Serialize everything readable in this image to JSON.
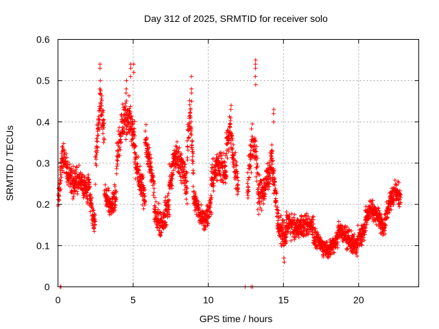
{
  "chart_data": {
    "type": "scatter",
    "title": "Day 312 of 2025, SRMTID for receiver solo",
    "xlabel": "GPS time / hours",
    "ylabel": "SRMTID / TECUs",
    "xlim": [
      0,
      24
    ],
    "ylim": [
      0,
      0.6
    ],
    "x_ticks": [
      0,
      5,
      10,
      15,
      20
    ],
    "x_tick_labels": [
      "0",
      "5",
      "10",
      "15",
      "20"
    ],
    "y_ticks": [
      0,
      0.1,
      0.2,
      0.3,
      0.4,
      0.5,
      0.6
    ],
    "y_tick_labels": [
      "0",
      "0.1",
      "0.2",
      "0.3",
      "0.4",
      "0.5",
      "0.6"
    ],
    "grid": true,
    "marker": "plus",
    "color": "#ff0000",
    "sample_interval_hours": 0.02,
    "segments": [
      {
        "start": 0.0,
        "end": 0.6,
        "base": [
          0.2,
          0.32,
          0.28
        ],
        "spread": 0.05
      },
      {
        "start": 0.6,
        "end": 2.0,
        "base": [
          0.28,
          0.25,
          0.26,
          0.23
        ],
        "spread": 0.05
      },
      {
        "start": 2.0,
        "end": 2.5,
        "base": [
          0.26,
          0.18,
          0.15
        ],
        "spread": 0.04
      },
      {
        "start": 2.5,
        "end": 3.1,
        "base": [
          0.3,
          0.45,
          0.38
        ],
        "spread": 0.07
      },
      {
        "start": 3.1,
        "end": 3.9,
        "base": [
          0.22,
          0.2,
          0.22
        ],
        "spread": 0.04
      },
      {
        "start": 3.9,
        "end": 5.1,
        "base": [
          0.32,
          0.4,
          0.42,
          0.35
        ],
        "spread": 0.07
      },
      {
        "start": 5.1,
        "end": 5.8,
        "base": [
          0.32,
          0.25,
          0.22
        ],
        "spread": 0.05
      },
      {
        "start": 5.8,
        "end": 6.4,
        "base": [
          0.36,
          0.3,
          0.24
        ],
        "spread": 0.05
      },
      {
        "start": 6.4,
        "end": 7.4,
        "base": [
          0.18,
          0.15,
          0.2
        ],
        "spread": 0.05
      },
      {
        "start": 7.4,
        "end": 8.6,
        "base": [
          0.24,
          0.32,
          0.3,
          0.24
        ],
        "spread": 0.06
      },
      {
        "start": 8.6,
        "end": 9.0,
        "base": [
          0.34,
          0.42,
          0.3
        ],
        "spread": 0.06
      },
      {
        "start": 9.0,
        "end": 10.2,
        "base": [
          0.22,
          0.18,
          0.16,
          0.2
        ],
        "spread": 0.04
      },
      {
        "start": 10.2,
        "end": 11.2,
        "base": [
          0.26,
          0.3,
          0.27
        ],
        "spread": 0.05
      },
      {
        "start": 11.2,
        "end": 12.0,
        "base": [
          0.34,
          0.38,
          0.3,
          0.24
        ],
        "spread": 0.06
      },
      {
        "start": 12.6,
        "end": 13.3,
        "base": [
          0.24,
          0.36,
          0.28
        ],
        "spread": 0.07
      },
      {
        "start": 13.3,
        "end": 14.2,
        "base": [
          0.22,
          0.24,
          0.3
        ],
        "spread": 0.06
      },
      {
        "start": 14.2,
        "end": 15.2,
        "base": [
          0.32,
          0.14,
          0.12
        ],
        "spread": 0.05
      },
      {
        "start": 15.2,
        "end": 17.0,
        "base": [
          0.16,
          0.14,
          0.15,
          0.15
        ],
        "spread": 0.04
      },
      {
        "start": 17.0,
        "end": 18.6,
        "base": [
          0.12,
          0.1,
          0.09,
          0.12
        ],
        "spread": 0.03
      },
      {
        "start": 18.6,
        "end": 20.4,
        "base": [
          0.14,
          0.12,
          0.1,
          0.14
        ],
        "spread": 0.04
      },
      {
        "start": 20.4,
        "end": 21.6,
        "base": [
          0.16,
          0.19,
          0.18,
          0.15
        ],
        "spread": 0.04
      },
      {
        "start": 21.6,
        "end": 22.8,
        "base": [
          0.13,
          0.2,
          0.23,
          0.22
        ],
        "spread": 0.04
      }
    ],
    "spikes": [
      {
        "x": 2.82,
        "values": [
          0.54,
          0.53,
          0.5,
          0.48
        ]
      },
      {
        "x": 4.55,
        "values": [
          0.48,
          0.5,
          0.47
        ]
      },
      {
        "x": 4.85,
        "values": [
          0.54,
          0.53,
          0.51
        ]
      },
      {
        "x": 5.05,
        "values": [
          0.54,
          0.52
        ]
      },
      {
        "x": 8.9,
        "values": [
          0.51,
          0.48,
          0.47,
          0.45
        ]
      },
      {
        "x": 11.5,
        "values": [
          0.44,
          0.43,
          0.41
        ]
      },
      {
        "x": 13.15,
        "values": [
          0.55,
          0.54,
          0.53,
          0.51,
          0.49
        ]
      },
      {
        "x": 14.35,
        "values": [
          0.43,
          0.42,
          0.4
        ]
      },
      {
        "x": 15.05,
        "values": [
          0.06,
          0.07
        ]
      }
    ],
    "zero_points": [
      0.15,
      0.2,
      12.45,
      12.85,
      12.95
    ]
  }
}
